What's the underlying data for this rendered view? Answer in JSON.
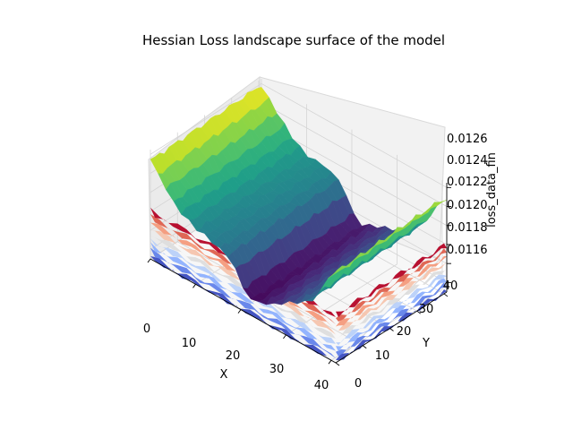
{
  "chart_data": {
    "type": "surface3d",
    "title": "Hessian Loss landscape surface of the model",
    "xlabel": "X",
    "ylabel": "Y",
    "zlabel": "loss_data_fin",
    "xlim": [
      0,
      41
    ],
    "ylim": [
      0,
      41
    ],
    "zlim": [
      0.0115,
      0.01265
    ],
    "x_ticks": [
      "0",
      "10",
      "20",
      "30",
      "40"
    ],
    "y_ticks": [
      "0",
      "10",
      "20",
      "30",
      "40"
    ],
    "z_ticks": [
      "0.0116",
      "0.0118",
      "0.0120",
      "0.0122",
      "0.0124",
      "0.0126"
    ],
    "grid": true,
    "colormaps": [
      "viridis",
      "coolwarm"
    ],
    "surface_profile_along_x": {
      "x": [
        0,
        3,
        6,
        10,
        14,
        18,
        20,
        22,
        25,
        28,
        31,
        34,
        37,
        40
      ],
      "z": [
        0.01256,
        0.01238,
        0.01222,
        0.0121,
        0.01207,
        0.012,
        0.01178,
        0.01168,
        0.01173,
        0.0118,
        0.01188,
        0.01197,
        0.01212,
        0.01246
      ]
    }
  }
}
